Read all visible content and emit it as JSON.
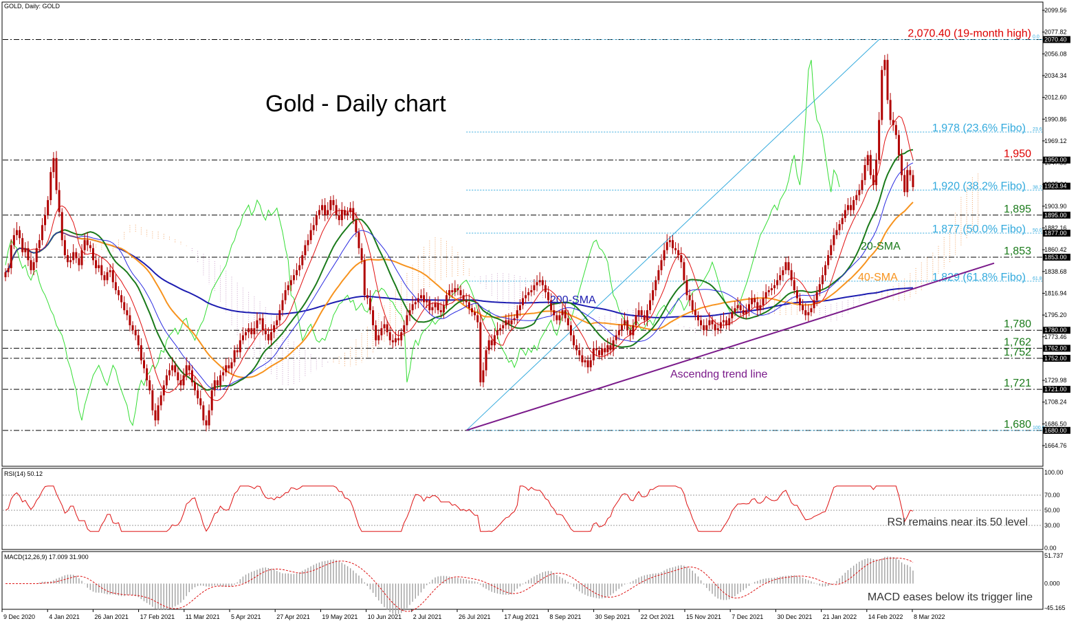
{
  "headers": {
    "main": "GOLD, Daily:  GOLD",
    "rsi": "RSI(14) 50.12",
    "macd": "MACD(12,26,9) 17.009 31.900"
  },
  "title": "Gold - Daily chart",
  "colors": {
    "candle": "#b00000",
    "sma20": "#1a7a1a",
    "sma40": "#f7931e",
    "sma200": "#1c1cb0",
    "chikou": "#33dd33",
    "tenkan": "#e01010",
    "kijun": "#2a2ae0",
    "cloud": "#f0a060",
    "cloud_b": "#c8a0c8",
    "fibo": "#33aadd",
    "trendline": "#7a1a8a",
    "rsi": "#dd1010",
    "macd_hist": "#a0a0a0",
    "macd_signal": "#dd1010",
    "level": "#000000",
    "red_text": "#dd0000",
    "green_text": "#1a7a1a",
    "orange_text": "#f7931e",
    "blue_text": "#1c1cb0",
    "purple_text": "#7a1a8a"
  },
  "chart_data": {
    "type": "candlestick",
    "price_axis": {
      "ticks": [
        "2099.56",
        "2077.82",
        "2056.08",
        "2034.34",
        "2012.60",
        "1990.86",
        "1969.12",
        "1947.38",
        "1925.64",
        "1903.90",
        "1882.16",
        "1860.42",
        "1838.68",
        "1816.94",
        "1795.20",
        "1773.46",
        "1751.72",
        "1729.98",
        "1708.24",
        "1686.50",
        "1664.76"
      ],
      "highlighted": [
        {
          "value": 2070.4,
          "label": "2070.40"
        },
        {
          "value": 1950.0,
          "label": "1950.00"
        },
        {
          "value": 1923.94,
          "label": "1923.94"
        },
        {
          "value": 1895.0,
          "label": "1895.00"
        },
        {
          "value": 1877.0,
          "label": "1877.00"
        },
        {
          "value": 1853.0,
          "label": "1853.00"
        },
        {
          "value": 1780.0,
          "label": "1780.00"
        },
        {
          "value": 1762.0,
          "label": "1762.00"
        },
        {
          "value": 1752.0,
          "label": "1752.00"
        },
        {
          "value": 1721.0,
          "label": "1721.00"
        },
        {
          "value": 1680.0,
          "label": "1680.00"
        }
      ]
    },
    "x_labels": [
      "9 Dec 2020",
      "4 Jan 2021",
      "26 Jan 2021",
      "17 Feb 2021",
      "11 Mar 2021",
      "5 Apr 2021",
      "27 Apr 2021",
      "19 May 2021",
      "10 Jun 2021",
      "2 Jul 2021",
      "26 Jul 2021",
      "17 Aug 2021",
      "8 Sep 2021",
      "30 Sep 2021",
      "22 Oct 2021",
      "15 Nov 2021",
      "7 Dec 2021",
      "30 Dec 2021",
      "21 Jan 2022",
      "14 Feb 2022",
      "8 Mar 2022"
    ],
    "levels": [
      {
        "value": 2070.4,
        "label": "2,070.40 (19-month high)",
        "color_key": "red_text"
      },
      {
        "value": 1950,
        "label": "1,950",
        "color_key": "red_text"
      },
      {
        "value": 1895,
        "label": "1,895",
        "color_key": "green_text"
      },
      {
        "value": 1853,
        "label": "1,853",
        "color_key": "green_text"
      },
      {
        "value": 1780,
        "label": "1,780",
        "color_key": "green_text"
      },
      {
        "value": 1762,
        "label": "1,762",
        "color_key": "green_text"
      },
      {
        "value": 1752,
        "label": "1,752",
        "color_key": "green_text"
      },
      {
        "value": 1721,
        "label": "1,721",
        "color_key": "green_text"
      },
      {
        "value": 1680,
        "label": "1,680",
        "color_key": "green_text"
      }
    ],
    "fibonacci": [
      {
        "value": 2070.4,
        "ratio": "0.0",
        "label": ""
      },
      {
        "value": 1978,
        "ratio": "23.6",
        "label": "1,978 (23.6% Fibo)"
      },
      {
        "value": 1920,
        "ratio": "38.2",
        "label": "1,920 (38.2% Fibo)"
      },
      {
        "value": 1877,
        "ratio": "50.0",
        "label": "1,877 (50.0% Fibo)"
      },
      {
        "value": 1829,
        "ratio": "61.8",
        "label": "1,829 (61.8% Fibo)"
      },
      {
        "value": 1680,
        "ratio": "100.0",
        "label": ""
      }
    ],
    "annotations": {
      "sma20": "20-SMA",
      "sma40": "40-SMA",
      "sma200": "200-SMA",
      "trend": "Ascendng trend line"
    },
    "trendline": {
      "from_date": "6 Aug 2021",
      "from_value": 1680,
      "to_value": 1847
    },
    "closes": [
      1838,
      1842,
      1865,
      1875,
      1880,
      1872,
      1858,
      1862,
      1850,
      1840,
      1848,
      1862,
      1870,
      1885,
      1895,
      1910,
      1938,
      1952,
      1920,
      1898,
      1870,
      1855,
      1848,
      1850,
      1858,
      1852,
      1845,
      1860,
      1870,
      1865,
      1862,
      1850,
      1842,
      1845,
      1835,
      1830,
      1838,
      1840,
      1828,
      1820,
      1815,
      1808,
      1800,
      1795,
      1785,
      1780,
      1775,
      1765,
      1750,
      1742,
      1730,
      1720,
      1700,
      1690,
      1705,
      1715,
      1725,
      1735,
      1740,
      1745,
      1738,
      1730,
      1725,
      1735,
      1745,
      1740,
      1728,
      1720,
      1712,
      1705,
      1690,
      1685,
      1700,
      1720,
      1730,
      1725,
      1735,
      1738,
      1745,
      1742,
      1748,
      1760,
      1758,
      1770,
      1775,
      1778,
      1782,
      1776,
      1782,
      1790,
      1792,
      1780,
      1776,
      1770,
      1778,
      1785,
      1790,
      1800,
      1810,
      1820,
      1825,
      1830,
      1835,
      1840,
      1845,
      1855,
      1865,
      1870,
      1880,
      1885,
      1895,
      1900,
      1905,
      1895,
      1900,
      1910,
      1905,
      1895,
      1890,
      1900,
      1895,
      1898,
      1902,
      1890,
      1878,
      1862,
      1850,
      1815,
      1812,
      1800,
      1785,
      1770,
      1775,
      1782,
      1786,
      1778,
      1770,
      1768,
      1772,
      1770,
      1778,
      1785,
      1795,
      1800,
      1806,
      1808,
      1812,
      1815,
      1808,
      1810,
      1800,
      1803,
      1807,
      1800,
      1798,
      1805,
      1815,
      1820,
      1818,
      1822,
      1820,
      1815,
      1810,
      1808,
      1802,
      1798,
      1795,
      1788,
      1728,
      1740,
      1760,
      1770,
      1765,
      1775,
      1780,
      1782,
      1785,
      1790,
      1786,
      1790,
      1792,
      1800,
      1805,
      1812,
      1815,
      1818,
      1820,
      1825,
      1828,
      1830,
      1825,
      1818,
      1810,
      1800,
      1795,
      1790,
      1795,
      1800,
      1792,
      1785,
      1775,
      1765,
      1760,
      1755,
      1748,
      1750,
      1743,
      1750,
      1762,
      1760,
      1755,
      1762,
      1758,
      1765,
      1760,
      1770,
      1775,
      1780,
      1785,
      1790,
      1780,
      1775,
      1785,
      1795,
      1800,
      1795,
      1790,
      1800,
      1810,
      1820,
      1830,
      1840,
      1850,
      1860,
      1868,
      1870,
      1862,
      1860,
      1855,
      1848,
      1830,
      1815,
      1810,
      1800,
      1795,
      1790,
      1785,
      1780,
      1785,
      1790,
      1786,
      1780,
      1782,
      1788,
      1790,
      1785,
      1792,
      1798,
      1802,
      1805,
      1800,
      1796,
      1800,
      1806,
      1812,
      1808,
      1800,
      1805,
      1812,
      1818,
      1820,
      1822,
      1825,
      1830,
      1835,
      1840,
      1848,
      1840,
      1830,
      1820,
      1812,
      1805,
      1800,
      1795,
      1798,
      1802,
      1810,
      1818,
      1826,
      1835,
      1845,
      1855,
      1865,
      1875,
      1880,
      1886,
      1892,
      1900,
      1905,
      1900,
      1910,
      1915,
      1920,
      1930,
      1945,
      1955,
      1935,
      1925,
      1950,
      1990,
      2040,
      2050,
      2010,
      1990,
      1985,
      1975,
      1955,
      1935,
      1918,
      1940,
      1935,
      1923
    ],
    "rsi": {
      "ylim": [
        0,
        100
      ],
      "ticks": [
        "100.00",
        "70.00",
        "50.00",
        "30.00",
        "0.00"
      ],
      "value": 50.12,
      "guides": [
        70,
        50,
        30
      ],
      "annotation": "RSI remains near its 50 level"
    },
    "macd": {
      "ylim": [
        -45.165,
        51.737
      ],
      "ticks": [
        "51.737",
        "0.000",
        "-45.165"
      ],
      "main": 17.009,
      "signal": 31.9,
      "annotation": "MACD eases below its trigger line"
    }
  }
}
